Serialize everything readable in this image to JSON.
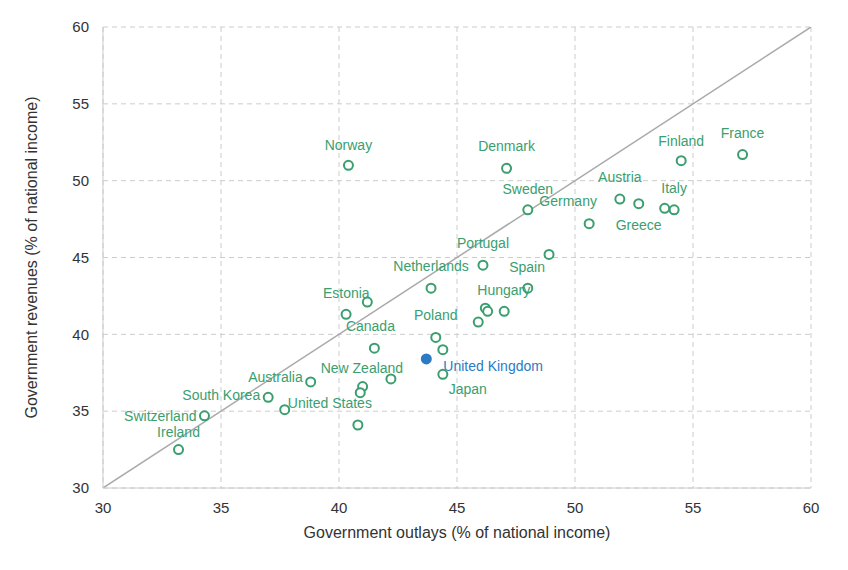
{
  "chart_data": {
    "type": "scatter",
    "xlabel": "Government outlays (% of national income)",
    "ylabel": "Government revenues (% of national income)",
    "x": [
      40.4,
      47.1,
      54.5,
      57.1,
      48.0,
      51.9,
      52.7,
      50.6,
      54.2,
      53.8,
      46.1,
      48.9,
      43.9,
      48.0,
      46.2,
      46.3,
      47.0,
      45.9,
      41.2,
      40.3,
      44.1,
      44.4,
      41.5,
      43.7,
      44.4,
      42.2,
      41.0,
      40.9,
      38.8,
      37.0,
      37.7,
      40.8,
      34.3,
      33.2
    ],
    "values": [
      51.0,
      50.8,
      51.3,
      51.7,
      48.1,
      48.8,
      48.5,
      47.2,
      48.1,
      48.2,
      44.5,
      45.2,
      43.0,
      43.0,
      41.7,
      41.5,
      41.5,
      40.8,
      42.1,
      41.3,
      39.8,
      39.0,
      39.1,
      38.4,
      37.4,
      37.1,
      36.6,
      36.2,
      36.9,
      35.9,
      35.1,
      34.1,
      34.7,
      32.5
    ],
    "labels": [
      "Norway",
      "Denmark",
      "Finland",
      "France",
      "Sweden",
      "Austria",
      null,
      "Germany",
      "Italy",
      "Greece",
      "Portugal",
      "Spain",
      "Netherlands",
      "Hungary",
      null,
      null,
      null,
      null,
      "Estonia",
      null,
      "Poland",
      null,
      "Canada",
      "United Kingdom",
      "Japan",
      "New Zealand",
      null,
      null,
      "Australia",
      "South Korea",
      null,
      "United States",
      "Switzerland",
      "Ireland"
    ],
    "color": "#3a9e6f",
    "colors": [
      "#3a9e6f",
      "#3a9e6f",
      "#3a9e6f",
      "#3a9e6f",
      "#3a9e6f",
      "#3a9e6f",
      "#3a9e6f",
      "#3a9e6f",
      "#3a9e6f",
      "#3a9e6f",
      "#3a9e6f",
      "#3a9e6f",
      "#3a9e6f",
      "#3a9e6f",
      "#3a9e6f",
      "#3a9e6f",
      "#3a9e6f",
      "#3a9e6f",
      "#3a9e6f",
      "#3a9e6f",
      "#3a9e6f",
      "#3a9e6f",
      "#3a9e6f",
      "#2b7bc4",
      "#3a9e6f",
      "#3a9e6f",
      "#3a9e6f",
      "#3a9e6f",
      "#3a9e6f",
      "#3a9e6f",
      "#3a9e6f",
      "#3a9e6f",
      "#3a9e6f",
      "#3a9e6f"
    ],
    "marker": "circle",
    "xlim": [
      30,
      60
    ],
    "ylim": [
      30,
      60
    ],
    "xticks": [
      30,
      35,
      40,
      45,
      50,
      55,
      60
    ],
    "yticks": [
      30,
      35,
      40,
      45,
      50,
      55,
      60
    ],
    "grid": true
  }
}
